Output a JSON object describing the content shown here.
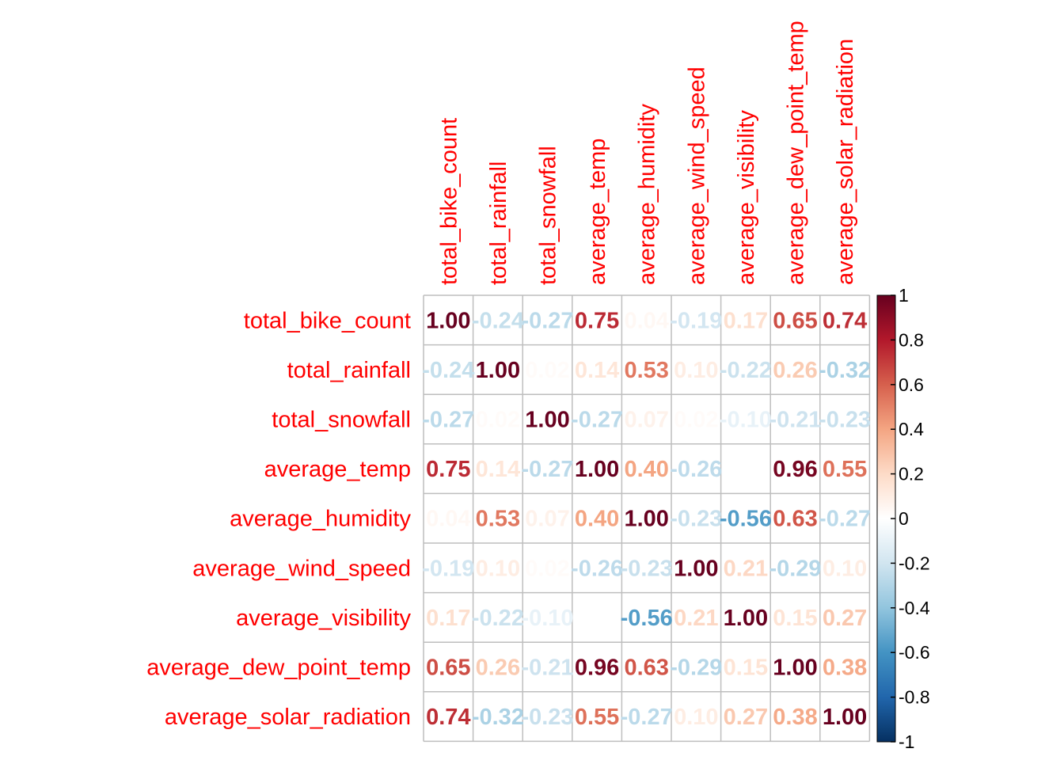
{
  "chart_data": {
    "type": "heatmap",
    "variables": [
      "total_bike_count",
      "total_rainfall",
      "total_snowfall",
      "average_temp",
      "average_humidity",
      "average_wind_speed",
      "average_visibility",
      "average_dew_point_temp",
      "average_solar_radiation"
    ],
    "matrix": [
      [
        1.0,
        -0.24,
        -0.27,
        0.75,
        0.04,
        -0.19,
        0.17,
        0.65,
        0.74
      ],
      [
        -0.24,
        1.0,
        0.02,
        0.14,
        0.53,
        0.1,
        -0.22,
        0.26,
        -0.32
      ],
      [
        -0.27,
        0.02,
        1.0,
        -0.27,
        0.07,
        0.02,
        -0.1,
        -0.21,
        -0.23
      ],
      [
        0.75,
        0.14,
        -0.27,
        1.0,
        0.4,
        -0.26,
        0.0,
        0.96,
        0.55
      ],
      [
        0.04,
        0.53,
        0.07,
        0.4,
        1.0,
        -0.23,
        -0.56,
        0.63,
        -0.27
      ],
      [
        -0.19,
        0.1,
        0.02,
        -0.26,
        -0.23,
        1.0,
        0.21,
        -0.29,
        0.1
      ],
      [
        0.17,
        -0.22,
        -0.1,
        0.0,
        -0.56,
        0.21,
        1.0,
        0.15,
        0.27
      ],
      [
        0.65,
        0.26,
        -0.21,
        0.96,
        0.63,
        -0.29,
        0.15,
        1.0,
        0.38
      ],
      [
        0.74,
        -0.32,
        -0.23,
        0.55,
        -0.27,
        0.1,
        0.27,
        0.38,
        1.0
      ]
    ],
    "colorbar": {
      "ticks": [
        "1",
        "0.8",
        "0.6",
        "0.4",
        "0.2",
        "0",
        "-0.2",
        "-0.4",
        "-0.6",
        "-0.8",
        "-1"
      ],
      "colors": [
        "#67001f",
        "#b2182b",
        "#d6604d",
        "#f4a582",
        "#fddbc7",
        "#ffffff",
        "#d1e5f0",
        "#92c5de",
        "#4393c3",
        "#2166ac",
        "#053061"
      ]
    },
    "label_color": "#ff0000",
    "grid_color": "#bebebe"
  }
}
